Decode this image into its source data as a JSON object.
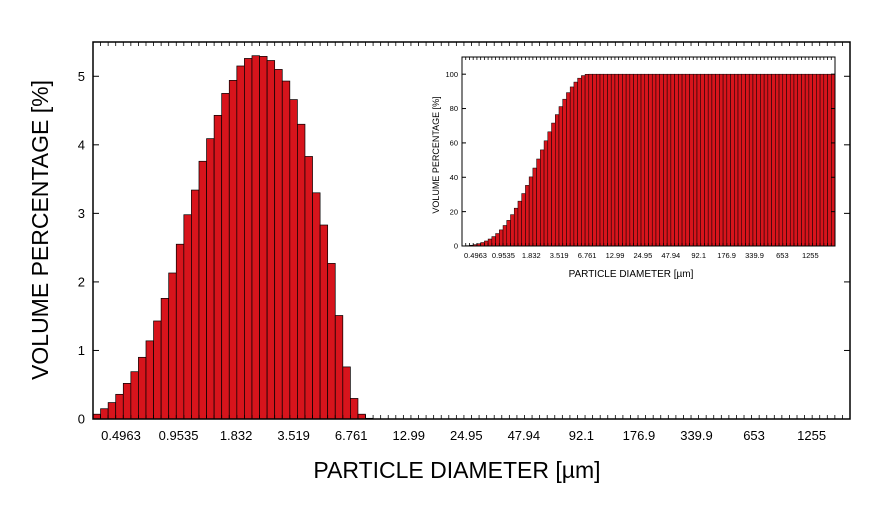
{
  "chart_data": [
    {
      "type": "bar",
      "xlabel": "PARTICLE DIAMETER [µm]",
      "ylabel": "VOLUME PERCENTAGE [%]",
      "ylim": [
        0,
        5.5
      ],
      "yticks": [
        0,
        1,
        2,
        3,
        4,
        5
      ],
      "xtick_labels": [
        "0.4963",
        "0.9535",
        "1.832",
        "3.519",
        "6.761",
        "12.99",
        "24.95",
        "47.94",
        "92.1",
        "176.9",
        "339.9",
        "653",
        "1255"
      ],
      "bar_color": "#d7141c",
      "bar_edge_color": "#000000",
      "values": [
        0.07,
        0.15,
        0.24,
        0.36,
        0.52,
        0.69,
        0.9,
        1.14,
        1.43,
        1.76,
        2.13,
        2.55,
        2.98,
        3.34,
        3.76,
        4.09,
        4.43,
        4.75,
        4.94,
        5.15,
        5.26,
        5.3,
        5.29,
        5.23,
        5.1,
        4.93,
        4.66,
        4.3,
        3.83,
        3.3,
        2.83,
        2.27,
        1.51,
        0.76,
        0.3,
        0.07,
        0.01,
        0,
        0,
        0,
        0,
        0,
        0,
        0,
        0,
        0,
        0,
        0,
        0,
        0,
        0,
        0,
        0,
        0,
        0,
        0,
        0,
        0,
        0,
        0,
        0,
        0,
        0,
        0,
        0,
        0,
        0,
        0,
        0,
        0,
        0,
        0,
        0,
        0,
        0,
        0,
        0,
        0,
        0,
        0,
        0,
        0,
        0,
        0,
        0,
        0,
        0,
        0,
        0,
        0,
        0,
        0,
        0,
        0,
        0,
        0,
        0,
        0,
        0,
        0
      ]
    },
    {
      "type": "bar",
      "xlabel": "PARTICLE DIAMETER [µm]",
      "ylabel": "VOLUME PERCENTAGE [%]",
      "ylim": [
        0,
        110
      ],
      "yticks": [
        0,
        20,
        40,
        60,
        80,
        100
      ],
      "xtick_labels": [
        "0.4963",
        "0.9535",
        "1.832",
        "3.519",
        "6.761",
        "12.99",
        "24.95",
        "47.94",
        "92.1",
        "176.9",
        "339.9",
        "653",
        "1255"
      ],
      "bar_color": "#d7141c",
      "bar_edge_color": "#000000",
      "values": [
        0.07,
        0.22,
        0.46,
        0.82,
        1.34,
        2.03,
        2.93,
        4.07,
        5.5,
        7.26,
        9.39,
        11.94,
        14.92,
        18.26,
        22.02,
        26.11,
        30.54,
        35.29,
        40.23,
        45.38,
        50.64,
        55.94,
        61.23,
        66.46,
        71.56,
        76.49,
        81.15,
        85.45,
        89.28,
        92.58,
        95.41,
        97.68,
        99.19,
        99.95,
        100,
        100,
        100,
        100,
        100,
        100,
        100,
        100,
        100,
        100,
        100,
        100,
        100,
        100,
        100,
        100,
        100,
        100,
        100,
        100,
        100,
        100,
        100,
        100,
        100,
        100,
        100,
        100,
        100,
        100,
        100,
        100,
        100,
        100,
        100,
        100,
        100,
        100,
        100,
        100,
        100,
        100,
        100,
        100,
        100,
        100,
        100,
        100,
        100,
        100,
        100,
        100,
        100,
        100,
        100,
        100,
        100,
        100,
        100,
        100,
        100,
        100,
        100,
        100,
        100,
        100
      ]
    }
  ]
}
